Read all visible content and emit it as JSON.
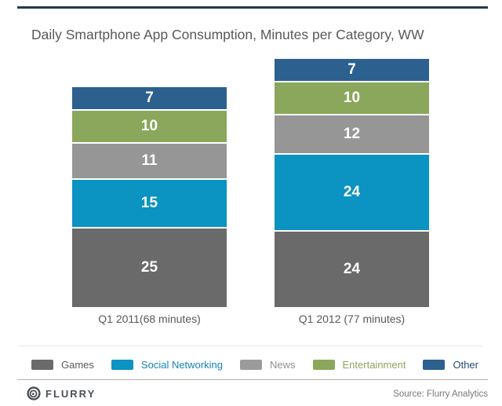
{
  "page": {
    "title": "Daily Smartphone App Consumption, Minutes per Category, WW"
  },
  "chart_data": {
    "type": "bar",
    "stacked": true,
    "title": "Daily Smartphone App Consumption, Minutes per Category, WW",
    "unit": "minutes",
    "categories": [
      "Q1 2011(68 minutes)",
      "Q1 2012 (77 minutes)"
    ],
    "series": [
      {
        "name": "Games",
        "color": "#6a6a6a",
        "values": [
          25,
          24
        ]
      },
      {
        "name": "Social Networking",
        "color": "#0b93c1",
        "values": [
          15,
          24
        ]
      },
      {
        "name": "News",
        "color": "#969696",
        "values": [
          11,
          12
        ]
      },
      {
        "name": "Entertainment",
        "color": "#8aa75c",
        "values": [
          10,
          10
        ]
      },
      {
        "name": "Other",
        "color": "#2c608f",
        "values": [
          7,
          7
        ]
      }
    ],
    "totals": [
      68,
      77
    ],
    "value_labels_shown": true,
    "legend_position": "bottom"
  },
  "legend": {
    "items": [
      {
        "label": "Games",
        "swatch_color": "#6a6a6a",
        "text_color": "#595a5c"
      },
      {
        "label": "Social Networking",
        "swatch_color": "#0b93c1",
        "text_color": "#1583b5"
      },
      {
        "label": "News",
        "swatch_color": "#9b9b9b",
        "text_color": "#8f9092"
      },
      {
        "label": "Entertainment",
        "swatch_color": "#8aa75c",
        "text_color": "#8aa75c"
      },
      {
        "label": "Other",
        "swatch_color": "#2c608f",
        "text_color": "#1f4a74"
      }
    ]
  },
  "footer": {
    "brand": "FLURRY",
    "source": "Source: Flurry Analytics"
  },
  "colors": {
    "top_rule": "#1e3c52",
    "title_text": "#58595b",
    "category_label_text": "#58595b",
    "value_label_text": "#ffffff",
    "divider_dotted": "#d2d2d2",
    "divider_solid": "#b5b5b5",
    "background": "#ffffff"
  }
}
